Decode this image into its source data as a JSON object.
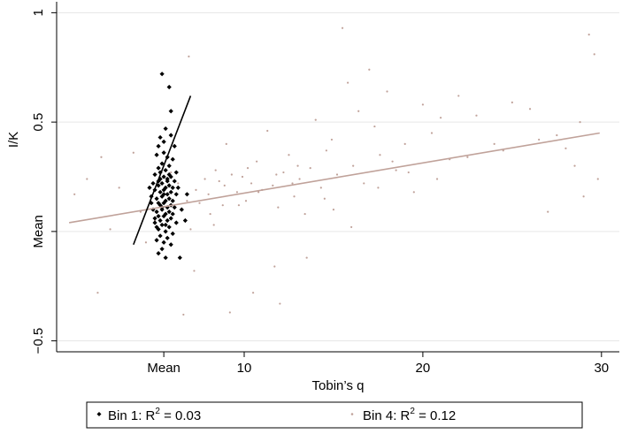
{
  "chart_data": {
    "type": "scatter",
    "xlabel": "Tobin’s q",
    "ylabel": "I/K",
    "xlim": [
      -0.5,
      31
    ],
    "ylim": [
      -0.55,
      1.05
    ],
    "x_ticks": [
      {
        "value": 5.5,
        "label": "Mean"
      },
      {
        "value": 10,
        "label": "10"
      },
      {
        "value": 20,
        "label": "20"
      },
      {
        "value": 30,
        "label": "30"
      }
    ],
    "y_ticks": [
      {
        "value": -0.5,
        "label": "−0.5"
      },
      {
        "value": 0,
        "label": "Mean"
      },
      {
        "value": 0.5,
        "label": "0.5"
      },
      {
        "value": 1,
        "label": "1"
      }
    ],
    "grid": true,
    "legend_position": "bottom",
    "series": [
      {
        "name": "Bin 1",
        "r2_label": "0.03",
        "color": "#000000",
        "marker": "diamond",
        "points": [
          [
            5.4,
            0.72
          ],
          [
            5.8,
            0.66
          ],
          [
            5.9,
            0.55
          ],
          [
            5.3,
            0.43
          ],
          [
            5.6,
            0.47
          ],
          [
            5.2,
            0.39
          ],
          [
            5.9,
            0.44
          ],
          [
            6.1,
            0.39
          ],
          [
            5.5,
            0.36
          ],
          [
            5.7,
            0.34
          ],
          [
            5.1,
            0.35
          ],
          [
            6.0,
            0.33
          ],
          [
            5.4,
            0.31
          ],
          [
            5.8,
            0.3
          ],
          [
            5.2,
            0.29
          ],
          [
            5.6,
            0.28
          ],
          [
            6.2,
            0.27
          ],
          [
            5.0,
            0.26
          ],
          [
            5.5,
            0.25
          ],
          [
            5.9,
            0.25
          ],
          [
            5.3,
            0.24
          ],
          [
            5.7,
            0.24
          ],
          [
            6.1,
            0.23
          ],
          [
            4.9,
            0.22
          ],
          [
            5.4,
            0.22
          ],
          [
            5.8,
            0.21
          ],
          [
            5.2,
            0.21
          ],
          [
            5.6,
            0.2
          ],
          [
            6.0,
            0.2
          ],
          [
            5.0,
            0.19
          ],
          [
            5.5,
            0.19
          ],
          [
            5.9,
            0.18
          ],
          [
            5.3,
            0.18
          ],
          [
            5.7,
            0.17
          ],
          [
            6.2,
            0.17
          ],
          [
            4.8,
            0.16
          ],
          [
            5.4,
            0.16
          ],
          [
            5.8,
            0.15
          ],
          [
            5.1,
            0.15
          ],
          [
            5.6,
            0.14
          ],
          [
            6.0,
            0.14
          ],
          [
            5.2,
            0.13
          ],
          [
            5.5,
            0.13
          ],
          [
            5.9,
            0.12
          ],
          [
            5.3,
            0.12
          ],
          [
            5.7,
            0.11
          ],
          [
            6.1,
            0.11
          ],
          [
            4.9,
            0.1
          ],
          [
            5.4,
            0.1
          ],
          [
            5.8,
            0.09
          ],
          [
            5.1,
            0.09
          ],
          [
            5.6,
            0.08
          ],
          [
            6.0,
            0.08
          ],
          [
            5.2,
            0.07
          ],
          [
            5.5,
            0.07
          ],
          [
            5.9,
            0.06
          ],
          [
            5.3,
            0.05
          ],
          [
            5.7,
            0.05
          ],
          [
            6.2,
            0.04
          ],
          [
            5.0,
            0.04
          ],
          [
            5.4,
            0.03
          ],
          [
            5.8,
            0.02
          ],
          [
            5.2,
            0.01
          ],
          [
            5.6,
            0.0
          ],
          [
            6.0,
            -0.01
          ],
          [
            5.3,
            -0.02
          ],
          [
            5.7,
            -0.03
          ],
          [
            5.1,
            -0.04
          ],
          [
            5.5,
            -0.05
          ],
          [
            5.9,
            -0.06
          ],
          [
            5.4,
            -0.08
          ],
          [
            5.2,
            -0.1
          ],
          [
            5.6,
            -0.12
          ],
          [
            6.4,
            -0.12
          ],
          [
            5.3,
            0.27
          ],
          [
            5.7,
            0.23
          ],
          [
            6.3,
            0.2
          ],
          [
            4.8,
            0.13
          ],
          [
            6.5,
            0.1
          ],
          [
            5.0,
            0.06
          ],
          [
            6.7,
            0.05
          ],
          [
            6.8,
            0.17
          ],
          [
            4.7,
            0.2
          ],
          [
            5.5,
            0.41
          ],
          [
            5.1,
            0.02
          ],
          [
            5.5,
            0.17
          ],
          [
            5.2,
            0.23
          ],
          [
            5.8,
            0.26
          ],
          [
            5.4,
            0.11
          ],
          [
            5.6,
            0.03
          ]
        ],
        "fit": {
          "x": [
            3.8,
            7.0
          ],
          "y": [
            -0.06,
            0.62
          ]
        }
      },
      {
        "name": "Bin 4",
        "r2_label": "0.12",
        "color": "#c0a29a",
        "marker": "dot",
        "points": [
          [
            0.5,
            0.17
          ],
          [
            1.2,
            0.24
          ],
          [
            2.0,
            0.34
          ],
          [
            2.5,
            0.01
          ],
          [
            1.8,
            -0.28
          ],
          [
            3.0,
            0.2
          ],
          [
            3.8,
            0.36
          ],
          [
            4.2,
            0.09
          ],
          [
            4.5,
            -0.05
          ],
          [
            6.9,
            0.8
          ],
          [
            7.0,
            0.01
          ],
          [
            7.5,
            0.13
          ],
          [
            8.0,
            0.17
          ],
          [
            8.3,
            0.03
          ],
          [
            8.6,
            0.23
          ],
          [
            8.8,
            0.12
          ],
          [
            9.0,
            0.4
          ],
          [
            9.3,
            0.26
          ],
          [
            9.6,
            0.18
          ],
          [
            9.9,
            0.25
          ],
          [
            10.1,
            0.14
          ],
          [
            10.4,
            0.22
          ],
          [
            10.7,
            0.32
          ],
          [
            11.0,
            0.19
          ],
          [
            11.3,
            0.46
          ],
          [
            11.6,
            0.21
          ],
          [
            11.9,
            0.11
          ],
          [
            12.2,
            0.27
          ],
          [
            12.5,
            0.35
          ],
          [
            12.8,
            0.16
          ],
          [
            13.1,
            0.24
          ],
          [
            13.4,
            0.08
          ],
          [
            13.7,
            0.29
          ],
          [
            14.0,
            0.51
          ],
          [
            14.3,
            0.2
          ],
          [
            14.6,
            0.37
          ],
          [
            14.9,
            0.42
          ],
          [
            15.2,
            0.26
          ],
          [
            15.5,
            0.93
          ],
          [
            15.8,
            0.68
          ],
          [
            16.1,
            0.3
          ],
          [
            16.4,
            0.55
          ],
          [
            16.7,
            0.22
          ],
          [
            17.0,
            0.74
          ],
          [
            17.3,
            0.48
          ],
          [
            17.6,
            0.35
          ],
          [
            18.0,
            0.64
          ],
          [
            18.5,
            0.28
          ],
          [
            19.0,
            0.4
          ],
          [
            19.5,
            0.18
          ],
          [
            20.0,
            0.58
          ],
          [
            20.5,
            0.45
          ],
          [
            21.0,
            0.52
          ],
          [
            21.5,
            0.33
          ],
          [
            22.0,
            0.62
          ],
          [
            23.0,
            0.53
          ],
          [
            24.0,
            0.4
          ],
          [
            25.0,
            0.59
          ],
          [
            26.0,
            0.56
          ],
          [
            27.0,
            0.09
          ],
          [
            27.5,
            0.44
          ],
          [
            28.0,
            0.38
          ],
          [
            28.5,
            0.3
          ],
          [
            29.0,
            0.16
          ],
          [
            29.3,
            0.9
          ],
          [
            29.6,
            0.81
          ],
          [
            29.8,
            0.24
          ],
          [
            11.7,
            -0.16
          ],
          [
            12.0,
            -0.33
          ],
          [
            13.5,
            -0.12
          ],
          [
            9.2,
            -0.37
          ],
          [
            10.5,
            -0.28
          ],
          [
            7.2,
            -0.18
          ],
          [
            6.6,
            -0.38
          ],
          [
            16.0,
            0.02
          ],
          [
            15.0,
            0.1
          ],
          [
            14.5,
            0.15
          ],
          [
            13.0,
            0.3
          ],
          [
            12.7,
            0.22
          ],
          [
            11.8,
            0.26
          ],
          [
            10.8,
            0.18
          ],
          [
            10.2,
            0.29
          ],
          [
            9.7,
            0.12
          ],
          [
            8.9,
            0.21
          ],
          [
            8.4,
            0.28
          ],
          [
            8.1,
            0.08
          ],
          [
            7.8,
            0.24
          ],
          [
            7.3,
            0.19
          ],
          [
            6.8,
            0.14
          ],
          [
            6.3,
            0.22
          ],
          [
            5.9,
            0.27
          ],
          [
            5.0,
            0.05
          ],
          [
            17.5,
            0.2
          ],
          [
            18.3,
            0.32
          ],
          [
            19.2,
            0.27
          ],
          [
            20.8,
            0.24
          ],
          [
            22.5,
            0.34
          ],
          [
            24.5,
            0.37
          ],
          [
            26.5,
            0.42
          ],
          [
            28.8,
            0.5
          ]
        ],
        "fit": {
          "x": [
            0.2,
            29.9
          ],
          "y": [
            0.04,
            0.45
          ]
        }
      }
    ]
  },
  "legend": {
    "items": [
      {
        "name": "Bin 1",
        "label_prefix": "Bin 1: R",
        "sup": "2",
        "label_suffix": " = 0.03"
      },
      {
        "name": "Bin 4",
        "label_prefix": "Bin 4: R",
        "sup": "2",
        "label_suffix": " = 0.12"
      }
    ]
  }
}
